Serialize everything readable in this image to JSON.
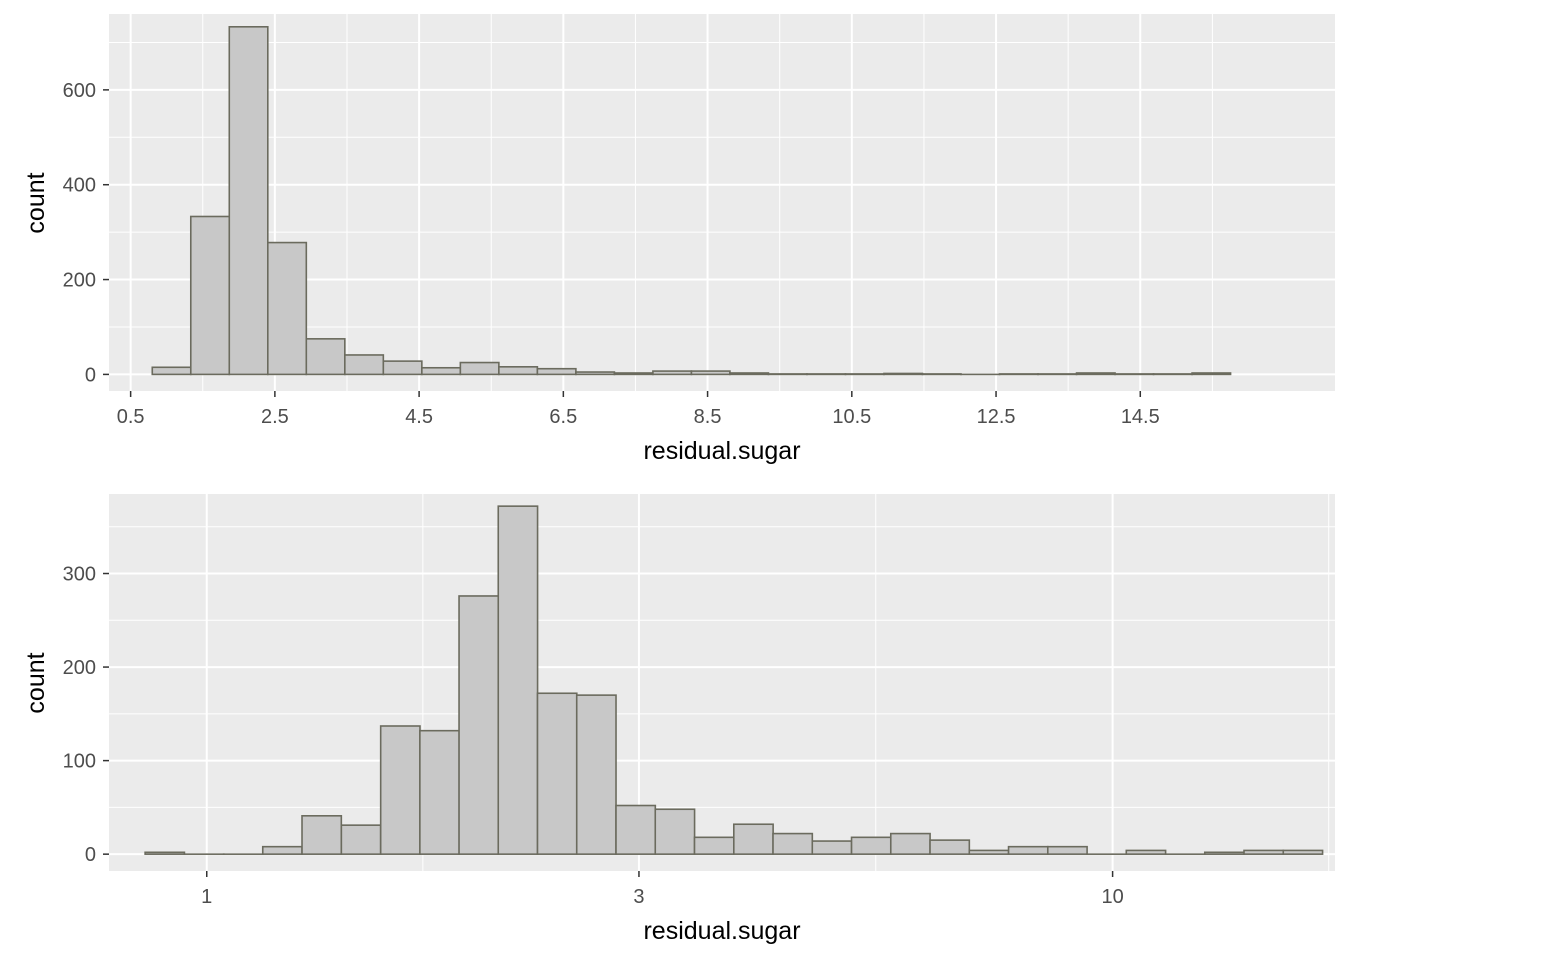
{
  "colors": {
    "panel_background": "#ebebeb",
    "grid": "#ffffff",
    "bar_fill": "#c8c8c8",
    "bar_outline": "#6b6b5e",
    "tick_text": "#4d4d4d",
    "axis_title": "#000000"
  },
  "chart_data": [
    {
      "type": "bar",
      "subtype": "histogram",
      "xlabel": "residual.sugar",
      "ylabel": "count",
      "x_scale": "linear",
      "xlim": [
        0.2,
        17.2
      ],
      "ylim": [
        -35,
        760
      ],
      "x_ticks": [
        {
          "value": 0.5,
          "label": "0.5"
        },
        {
          "value": 2.5,
          "label": "2.5"
        },
        {
          "value": 4.5,
          "label": "4.5"
        },
        {
          "value": 6.5,
          "label": "6.5"
        },
        {
          "value": 8.5,
          "label": "8.5"
        },
        {
          "value": 10.5,
          "label": "10.5"
        },
        {
          "value": 12.5,
          "label": "12.5"
        },
        {
          "value": 14.5,
          "label": "14.5"
        }
      ],
      "y_ticks": [
        {
          "value": 0,
          "label": "0"
        },
        {
          "value": 200,
          "label": "200"
        },
        {
          "value": 400,
          "label": "400"
        },
        {
          "value": 600,
          "label": "600"
        }
      ],
      "grid": true,
      "bin_width": 0.534,
      "bins": [
        {
          "x0": 0.8,
          "count": 15
        },
        {
          "x0": 1.334,
          "count": 333
        },
        {
          "x0": 1.868,
          "count": 733
        },
        {
          "x0": 2.402,
          "count": 278
        },
        {
          "x0": 2.936,
          "count": 75
        },
        {
          "x0": 3.47,
          "count": 41
        },
        {
          "x0": 4.004,
          "count": 28
        },
        {
          "x0": 4.538,
          "count": 14
        },
        {
          "x0": 5.072,
          "count": 25
        },
        {
          "x0": 5.606,
          "count": 16
        },
        {
          "x0": 6.14,
          "count": 12
        },
        {
          "x0": 6.674,
          "count": 5
        },
        {
          "x0": 7.208,
          "count": 3
        },
        {
          "x0": 7.742,
          "count": 7
        },
        {
          "x0": 8.276,
          "count": 7
        },
        {
          "x0": 8.81,
          "count": 3
        },
        {
          "x0": 9.344,
          "count": 1
        },
        {
          "x0": 9.878,
          "count": 1
        },
        {
          "x0": 10.412,
          "count": 1
        },
        {
          "x0": 10.946,
          "count": 2
        },
        {
          "x0": 11.48,
          "count": 1
        },
        {
          "x0": 12.014,
          "count": 0
        },
        {
          "x0": 12.548,
          "count": 1
        },
        {
          "x0": 13.082,
          "count": 1
        },
        {
          "x0": 13.616,
          "count": 3
        },
        {
          "x0": 14.15,
          "count": 1
        },
        {
          "x0": 14.684,
          "count": 1
        },
        {
          "x0": 15.218,
          "count": 3
        }
      ]
    },
    {
      "type": "bar",
      "subtype": "histogram",
      "xlabel": "residual.sugar",
      "ylabel": "count",
      "x_scale": "log10",
      "xlim": [
        0.78,
        17.6
      ],
      "ylim": [
        -18,
        385
      ],
      "x_ticks": [
        {
          "value": 1,
          "label": "1"
        },
        {
          "value": 3,
          "label": "3"
        },
        {
          "value": 10,
          "label": "10"
        }
      ],
      "y_ticks": [
        {
          "value": 0,
          "label": "0"
        },
        {
          "value": 100,
          "label": "100"
        },
        {
          "value": 200,
          "label": "200"
        },
        {
          "value": 300,
          "label": "300"
        }
      ],
      "grid": true,
      "bin_width_log10": 0.0434,
      "bins": [
        {
          "x0": 0.855,
          "count": 2
        },
        {
          "x0": 0.945,
          "count": 0
        },
        {
          "x0": 1.044,
          "count": 0
        },
        {
          "x0": 1.153,
          "count": 8
        },
        {
          "x0": 1.274,
          "count": 41
        },
        {
          "x0": 1.408,
          "count": 31
        },
        {
          "x0": 1.556,
          "count": 137
        },
        {
          "x0": 1.719,
          "count": 132
        },
        {
          "x0": 1.899,
          "count": 276
        },
        {
          "x0": 2.098,
          "count": 372
        },
        {
          "x0": 2.318,
          "count": 172
        },
        {
          "x0": 2.561,
          "count": 170
        },
        {
          "x0": 2.83,
          "count": 52
        },
        {
          "x0": 3.127,
          "count": 48
        },
        {
          "x0": 3.455,
          "count": 18
        },
        {
          "x0": 3.818,
          "count": 32
        },
        {
          "x0": 4.218,
          "count": 22
        },
        {
          "x0": 4.661,
          "count": 14
        },
        {
          "x0": 5.15,
          "count": 18
        },
        {
          "x0": 5.69,
          "count": 22
        },
        {
          "x0": 6.287,
          "count": 15
        },
        {
          "x0": 6.947,
          "count": 4
        },
        {
          "x0": 7.676,
          "count": 8
        },
        {
          "x0": 8.481,
          "count": 8
        },
        {
          "x0": 9.371,
          "count": 0
        },
        {
          "x0": 10.354,
          "count": 4
        },
        {
          "x0": 11.44,
          "count": 0
        },
        {
          "x0": 12.64,
          "count": 2
        },
        {
          "x0": 13.966,
          "count": 4
        },
        {
          "x0": 15.431,
          "count": 4
        }
      ]
    }
  ]
}
